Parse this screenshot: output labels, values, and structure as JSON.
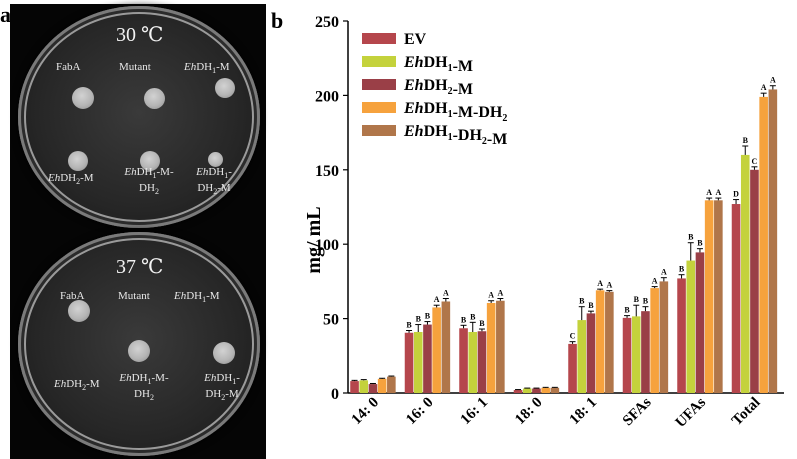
{
  "figure": {
    "panel_a_letter": "a",
    "panel_b_letter": "b"
  },
  "plates": {
    "top": {
      "temperature": "30 ℃",
      "strains": [
        "FabA",
        "Mutant",
        "EhDH1-M",
        "EhDH2-M",
        "EhDH1-M-DH2",
        "EhDH1-DH2-M"
      ]
    },
    "bottom": {
      "temperature": "37 ℃",
      "strains": [
        "FabA",
        "Mutant",
        "EhDH1-M",
        "EhDH2-M",
        "EhDH1-M-DH2",
        "EhDH1-DH2-M"
      ]
    }
  },
  "chart_data": {
    "type": "bar",
    "title": "",
    "xlabel": "",
    "ylabel": "mg/ mL",
    "ylim": [
      0,
      250
    ],
    "yticks": [
      0,
      50,
      100,
      150,
      200,
      250
    ],
    "categories": [
      "14: 0",
      "16: 0",
      "16: 1",
      "18: 0",
      "18: 1",
      "SFAs",
      "UFAs",
      "Total"
    ],
    "series": [
      {
        "name": "EV",
        "color": "#b5464c",
        "values": [
          8,
          40.5,
          43.5,
          2,
          33,
          50.5,
          77,
          127
        ],
        "errors": [
          0.5,
          1.5,
          2,
          0.3,
          1.5,
          1.5,
          2.5,
          3
        ],
        "letters": [
          "",
          "B",
          "B",
          "",
          "C",
          "B",
          "B",
          "D"
        ]
      },
      {
        "name": "EhDH1-M",
        "color": "#c4d23c",
        "values": [
          8.5,
          41,
          41,
          3,
          49,
          51.5,
          89,
          160
        ],
        "errors": [
          0.5,
          5,
          6.5,
          0.3,
          9,
          7.5,
          12,
          6
        ],
        "letters": [
          "",
          "B",
          "B",
          "",
          "B",
          "B",
          "B",
          "B"
        ]
      },
      {
        "name": "EhDH2-M",
        "color": "#9a3f47",
        "values": [
          6,
          46,
          41.5,
          3,
          53.5,
          55,
          94.5,
          150
        ],
        "errors": [
          0.4,
          2,
          1.5,
          0.3,
          1.5,
          3,
          2.5,
          2
        ],
        "letters": [
          "",
          "B",
          "B",
          "",
          "B",
          "B",
          "B",
          "C"
        ]
      },
      {
        "name": "EhDH1-M-DH2",
        "color": "#f6a23d",
        "values": [
          9.5,
          57.5,
          60.5,
          3.5,
          69,
          70.5,
          129.5,
          199
        ],
        "errors": [
          0.4,
          1.5,
          1.5,
          0.3,
          0.8,
          1,
          1.5,
          2.5
        ],
        "letters": [
          "",
          "A",
          "A",
          "",
          "A",
          "A",
          "A",
          "A"
        ]
      },
      {
        "name": "EhDH1-DH2-M",
        "color": "#b0764a",
        "values": [
          11,
          61.5,
          62,
          3.5,
          68,
          75,
          129.5,
          204
        ],
        "errors": [
          0.4,
          2,
          1.5,
          0.3,
          0.8,
          2.5,
          1.5,
          2.5
        ],
        "letters": [
          "",
          "A",
          "A",
          "",
          "A",
          "A",
          "A",
          "A"
        ]
      }
    ],
    "legend_position": "top-left"
  }
}
